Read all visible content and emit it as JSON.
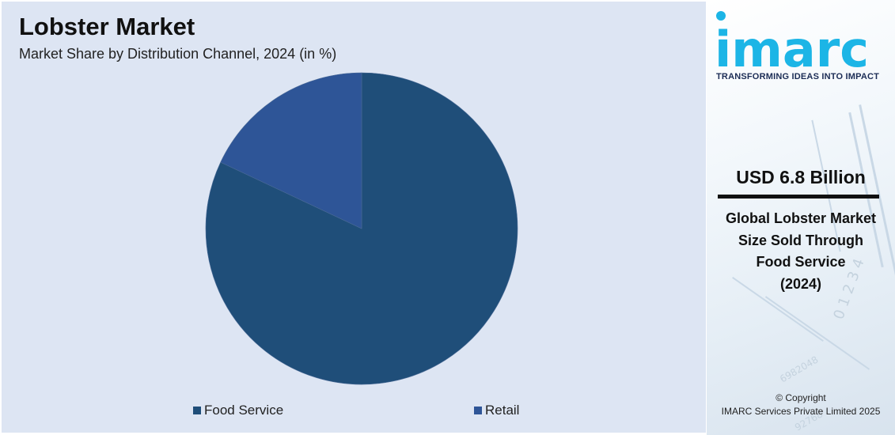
{
  "chart_data": {
    "type": "pie",
    "title": "Lobster Market",
    "subtitle": "Market Share by Distribution Channel, 2024 (in %)",
    "categories": [
      "Food Service",
      "Retail"
    ],
    "values": [
      82,
      18
    ],
    "colors": [
      "#1f4e79",
      "#2e5597"
    ],
    "start_angle_deg": 0,
    "direction": "clockwise",
    "legend_position": "bottom"
  },
  "sidebar": {
    "logo_text": "imarc",
    "tagline": "TRANSFORMING IDEAS INTO IMPACT",
    "highlight_value": "USD 6.8 Billion",
    "highlight_lines": [
      "Global Lobster Market",
      "Size Sold Through",
      "Food Service",
      "(2024)"
    ],
    "copyright": "© Copyright",
    "copyright_holder": "IMARC Services Private Limited 2025"
  },
  "colors": {
    "panel_bg": "#dde5f3",
    "brand_cyan": "#1cb5e6",
    "brand_navy": "#1b2c55"
  },
  "icons": {
    "logo": "imarc-logo"
  }
}
